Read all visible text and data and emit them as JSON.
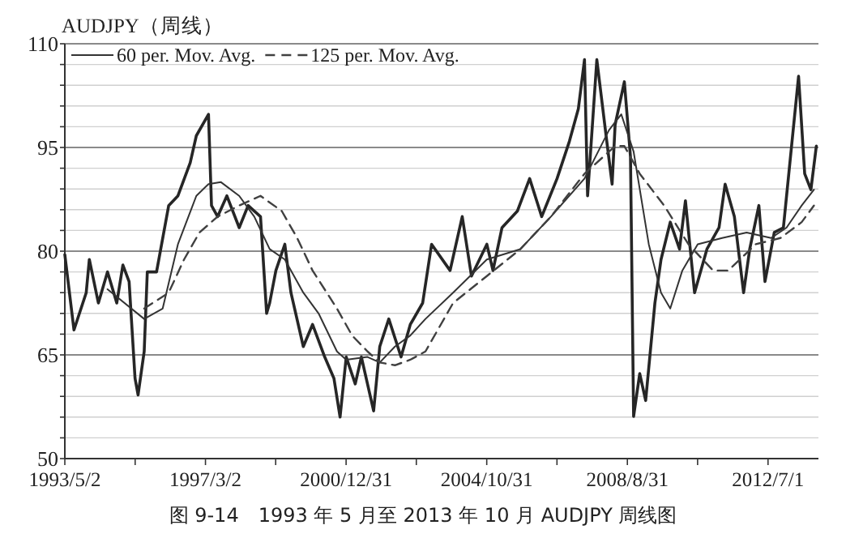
{
  "chart_data": {
    "type": "line",
    "title": "AUDJPY（周线）",
    "annotations": [
      "图 9-14　1993 年 5 月至 2013 年 10 月 AUDJPY 周线图"
    ],
    "xlim": [
      "1993-05-02",
      "2013-11-15"
    ],
    "xticks": [
      {
        "value": "1993-05-02",
        "label": "1993/5/2"
      },
      {
        "value": "1995-04-02",
        "label": null
      },
      {
        "value": "1997-03-02",
        "label": "1997/3/2"
      },
      {
        "value": "1999-01-30",
        "label": null
      },
      {
        "value": "2000-12-31",
        "label": "2000/12/31"
      },
      {
        "value": "2002-11-30",
        "label": null
      },
      {
        "value": "2004-10-31",
        "label": "2004/10/31"
      },
      {
        "value": "2006-09-30",
        "label": null
      },
      {
        "value": "2008-08-31",
        "label": "2008/8/31"
      },
      {
        "value": "2010-07-31",
        "label": null
      },
      {
        "value": "2012-07-01",
        "label": "2012/7/1"
      }
    ],
    "ylim": [
      50,
      110
    ],
    "yticks": [
      50,
      {
        "value": 53,
        "label": null
      },
      {
        "value": 56,
        "label": null
      },
      {
        "value": 59,
        "label": null
      },
      {
        "value": 62,
        "label": null
      },
      65,
      {
        "value": 68,
        "label": null
      },
      {
        "value": 71,
        "label": null
      },
      {
        "value": 74,
        "label": null
      },
      {
        "value": 77,
        "label": null
      },
      80,
      {
        "value": 83,
        "label": null
      },
      {
        "value": 86,
        "label": null
      },
      {
        "value": 89,
        "label": null
      },
      {
        "value": 92,
        "label": null
      },
      95,
      {
        "value": 98,
        "label": null
      },
      {
        "value": 101,
        "label": null
      },
      {
        "value": 104,
        "label": null
      },
      {
        "value": 107,
        "label": null
      },
      110
    ],
    "grid": "y",
    "legend": "top left",
    "series": [
      {
        "color": "#262626",
        "line_style": "solid",
        "x": [
          "1993-05-02",
          "1993-08",
          "1993-12",
          "1994-01",
          "1994-04",
          "1994-07",
          "1994-10",
          "1994-12",
          "1995-02",
          "1995-04",
          "1995-05",
          "1995-07",
          "1995-08",
          "1995-11",
          "1996-03",
          "1996-06",
          "1996-10",
          "1996-12",
          "1997-04",
          "1997-05",
          "1997-07",
          "1997-10",
          "1998-02",
          "1998-05",
          "1998-09",
          "1998-11",
          "1998-12",
          "1999-02",
          "1999-05",
          "1999-07",
          "1999-11",
          "2000-02",
          "2000-06",
          "2000-09",
          "2000-11",
          "2001-01",
          "2001-04",
          "2001-06",
          "2001-10",
          "2001-12",
          "2002-03",
          "2002-07",
          "2002-10",
          "2003-02",
          "2003-05",
          "2003-11",
          "2004-03",
          "2004-06",
          "2004-11",
          "2005-01",
          "2005-04",
          "2005-09",
          "2006-01",
          "2006-05",
          "2006-10",
          "2007-02",
          "2007-05",
          "2007-07",
          "2007-08",
          "2007-11",
          "2008-02",
          "2008-04",
          "2008-05",
          "2008-08",
          "2008-10",
          "2008-11",
          "2009-01",
          "2009-03",
          "2009-06",
          "2009-08",
          "2009-11",
          "2010-02",
          "2010-04",
          "2010-07",
          "2010-11",
          "2011-03",
          "2011-05",
          "2011-08",
          "2011-11",
          "2012-01",
          "2012-04",
          "2012-06",
          "2012-09",
          "2012-12",
          "2013-05",
          "2013-07",
          "2013-09",
          "2013-10-25"
        ],
        "values": [
          79.5,
          68.6,
          74,
          78.8,
          72.5,
          77,
          72.5,
          78,
          75.6,
          61.6,
          59.2,
          65.5,
          77,
          77,
          86.6,
          88,
          92.8,
          96.7,
          99.8,
          86.6,
          85,
          88,
          83.4,
          86.6,
          85,
          71,
          72.5,
          77.2,
          81,
          74,
          66.2,
          69.4,
          64.7,
          61.6,
          56,
          64.7,
          60.8,
          64.7,
          56.9,
          66.2,
          70.2,
          64.7,
          69.4,
          72.5,
          81,
          77.2,
          85,
          76.4,
          81,
          77.2,
          83.4,
          85.8,
          90.5,
          85,
          90.5,
          95.9,
          100.6,
          107.7,
          88,
          107.7,
          96.7,
          89.7,
          98.3,
          104.5,
          93.6,
          56.1,
          62.3,
          58.4,
          72.5,
          78.8,
          84.2,
          80.3,
          87.3,
          74,
          80.3,
          83.4,
          89.7,
          85,
          74,
          80.3,
          86.6,
          75.6,
          82.7,
          83.4,
          105.3,
          91.2,
          88.9,
          95.2
        ]
      },
      {
        "name": "60 per. Mov. Avg.",
        "color": "#333333",
        "line_style": "solid",
        "x": [
          "1994-07",
          "1995-07",
          "1996-01",
          "1996-06",
          "1996-12",
          "1997-04",
          "1997-08",
          "1998-02",
          "1998-07",
          "1998-12",
          "1999-05",
          "1999-11",
          "2000-04",
          "2000-10",
          "2001-01",
          "2001-08",
          "2001-12",
          "2002-05",
          "2002-10",
          "2003-03",
          "2003-12",
          "2004-11",
          "2005-10",
          "2006-08",
          "2007-07",
          "2008-03",
          "2008-07",
          "2008-11",
          "2009-04",
          "2009-08",
          "2009-11",
          "2010-03",
          "2010-08",
          "2011-04",
          "2011-12",
          "2012-08",
          "2013-01",
          "2013-06",
          "2013-10"
        ],
        "values": [
          74.5,
          70.2,
          71.7,
          81,
          88,
          89.7,
          90,
          88,
          85,
          80.3,
          78.8,
          74,
          71,
          65.5,
          64.3,
          64.7,
          63.9,
          66.2,
          67.8,
          70.2,
          74,
          78.8,
          80.3,
          85,
          90.5,
          97.5,
          99.8,
          94.4,
          81,
          74,
          71.7,
          77.2,
          81,
          81.9,
          82.7,
          81.9,
          83.4,
          86.6,
          88.9
        ]
      },
      {
        "name": "125 per. Mov. Avg.",
        "color": "#404040",
        "line_style": "dashed",
        "x": [
          "1995-07",
          "1996-03",
          "1996-08",
          "1997-01",
          "1997-07",
          "1998-02",
          "1998-09",
          "1999-04",
          "1999-09",
          "2000-02",
          "2000-10",
          "2001-03",
          "2001-08",
          "2001-12",
          "2002-05",
          "2002-10",
          "2003-03",
          "2003-12",
          "2004-11",
          "2005-10",
          "2006-08",
          "2007-07",
          "2008-05",
          "2008-08",
          "2009-01",
          "2009-09",
          "2010-05",
          "2011-01",
          "2011-06",
          "2012-03",
          "2012-11",
          "2013-06",
          "2013-10"
        ],
        "values": [
          71.7,
          74,
          78.8,
          82.7,
          85,
          86.6,
          88,
          85.8,
          81.9,
          77.2,
          71.7,
          67.8,
          65.5,
          63.9,
          63.5,
          64.3,
          65.5,
          72.5,
          76.4,
          80.3,
          85,
          91.2,
          95.2,
          95.2,
          91.2,
          86.6,
          81,
          77.2,
          77.2,
          81,
          81.9,
          84.2,
          86.6
        ]
      }
    ]
  }
}
